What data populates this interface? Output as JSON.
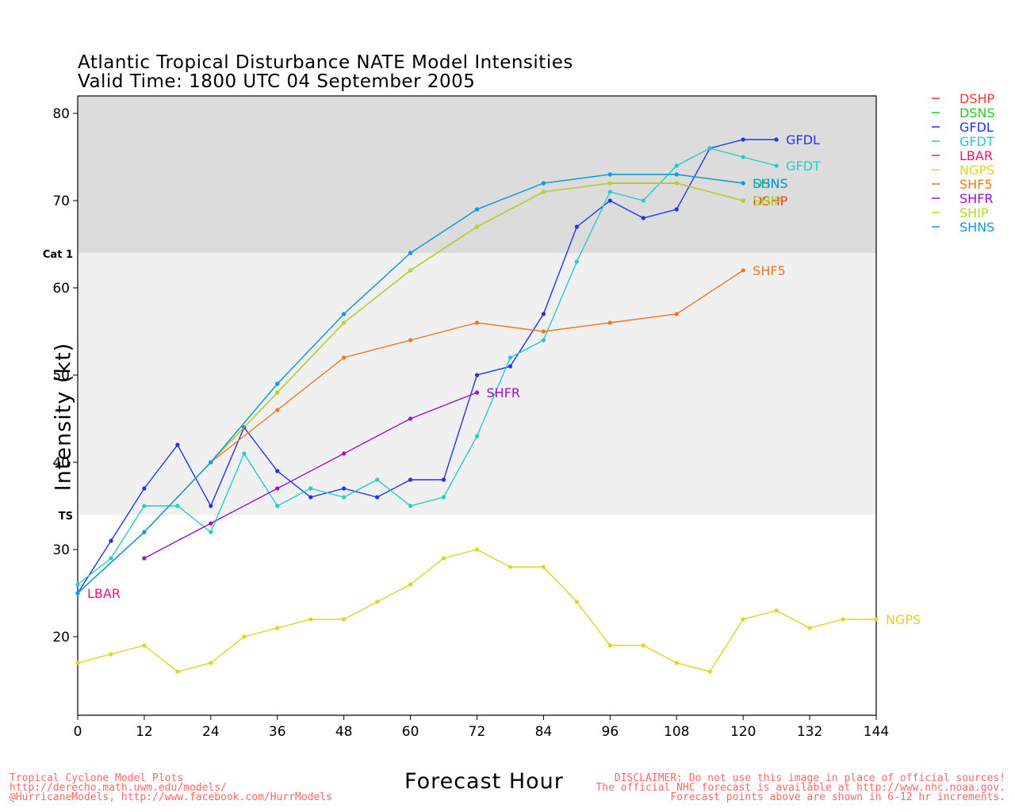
{
  "title_line1": "Atlantic Tropical Disturbance NATE Model Intensities",
  "title_line2": "Valid Time: 1800 UTC 04 September 2005",
  "footer_left": [
    "Tropical Cyclone Model Plots",
    "http://derecho.math.uwm.edu/models/",
    "@HurricaneModels, http://www.facebook.com/HurrModels"
  ],
  "footer_right": [
    "DISCLAIMER: Do not use this image in place of official sources!",
    "The official NHC forecast is available at http://www.nhc.noaa.gov.",
    "Forecast points above are shown in 6-12 hr increments."
  ],
  "chart_data": {
    "type": "line",
    "xlabel": "Forecast Hour",
    "ylabel": "Intensity (kt)",
    "xlim": [
      0,
      144
    ],
    "ylim": [
      11,
      82
    ],
    "xticks": [
      0,
      12,
      24,
      36,
      48,
      60,
      72,
      84,
      96,
      108,
      120,
      132,
      144
    ],
    "yticks": [
      20,
      30,
      40,
      50,
      60,
      70,
      80
    ],
    "bands": [
      {
        "label": "Cat 1",
        "from": 64,
        "to": 82,
        "color": "#dcdcdc"
      },
      {
        "label": "TS",
        "from": 34,
        "to": 64,
        "color": "#f0f0f0"
      }
    ],
    "legend_position": "right",
    "series": [
      {
        "name": "DSHP",
        "color": "#ff3333",
        "label": "DSHP",
        "x": [
          0,
          12,
          24,
          36,
          48,
          60,
          72,
          84,
          96,
          108,
          120
        ],
        "y": [
          25,
          32,
          40,
          48,
          56,
          62,
          67,
          71,
          72,
          72,
          70
        ]
      },
      {
        "name": "DSNS",
        "color": "#22cc22",
        "label": "DSNS",
        "x": [
          0,
          12,
          24,
          36,
          48,
          60,
          72,
          84,
          96,
          108,
          120
        ],
        "y": [
          25,
          32,
          40,
          49,
          57,
          64,
          69,
          72,
          73,
          73,
          72
        ]
      },
      {
        "name": "GFDL",
        "color": "#2233ee",
        "label": "GFDL",
        "x": [
          0,
          6,
          12,
          18,
          24,
          30,
          36,
          42,
          48,
          54,
          60,
          66,
          72,
          78,
          84,
          90,
          96,
          102,
          108,
          114,
          120,
          126
        ],
        "y": [
          25,
          31,
          37,
          42,
          35,
          44,
          39,
          36,
          37,
          36,
          38,
          38,
          50,
          51,
          57,
          67,
          70,
          68,
          69,
          76,
          77,
          77
        ]
      },
      {
        "name": "GFDT",
        "color": "#22cccc",
        "label": "GFDT",
        "x": [
          0,
          6,
          12,
          18,
          24,
          30,
          36,
          42,
          48,
          54,
          60,
          66,
          72,
          78,
          84,
          90,
          96,
          102,
          108,
          114,
          120,
          126
        ],
        "y": [
          26,
          29,
          35,
          35,
          32,
          41,
          35,
          37,
          36,
          38,
          35,
          36,
          43,
          52,
          54,
          63,
          71,
          70,
          74,
          76,
          75,
          74
        ]
      },
      {
        "name": "LBAR",
        "color": "#ee1177",
        "label": "LBAR",
        "x": [
          0
        ],
        "y": [
          25
        ]
      },
      {
        "name": "NGPS",
        "color": "#e6d020",
        "label": "NGPS",
        "x": [
          0,
          6,
          12,
          18,
          24,
          30,
          36,
          42,
          48,
          54,
          60,
          66,
          72,
          78,
          84,
          90,
          96,
          102,
          108,
          114,
          120,
          126,
          132,
          138,
          144
        ],
        "y": [
          17,
          18,
          19,
          16,
          17,
          20,
          21,
          22,
          22,
          24,
          26,
          29,
          30,
          28,
          28,
          24,
          19,
          19,
          17,
          16,
          22,
          23,
          21,
          22,
          22
        ]
      },
      {
        "name": "SHF5",
        "color": "#ee7722",
        "label": "SHF5",
        "x": [
          0,
          12,
          24,
          36,
          48,
          60,
          72,
          84,
          96,
          108,
          120
        ],
        "y": [
          25,
          32,
          40,
          46,
          52,
          54,
          56,
          55,
          56,
          57,
          62
        ]
      },
      {
        "name": "SHFR",
        "color": "#9911cc",
        "label": "SHFR",
        "x": [
          12,
          24,
          36,
          48,
          60,
          72
        ],
        "y": [
          29,
          33,
          37,
          41,
          45,
          48
        ]
      },
      {
        "name": "SHIP",
        "color": "#aadd22",
        "label": "SHIP",
        "x": [
          0,
          12,
          24,
          36,
          48,
          60,
          72,
          84,
          96,
          108,
          120
        ],
        "y": [
          25,
          32,
          40,
          48,
          56,
          62,
          67,
          71,
          72,
          72,
          70
        ]
      },
      {
        "name": "SHNS",
        "color": "#1199ee",
        "label": "SHNS",
        "x": [
          0,
          12,
          24,
          36,
          48,
          60,
          72,
          84,
          96,
          108,
          120
        ],
        "y": [
          25,
          32,
          40,
          49,
          57,
          64,
          69,
          72,
          73,
          73,
          72
        ]
      }
    ]
  }
}
